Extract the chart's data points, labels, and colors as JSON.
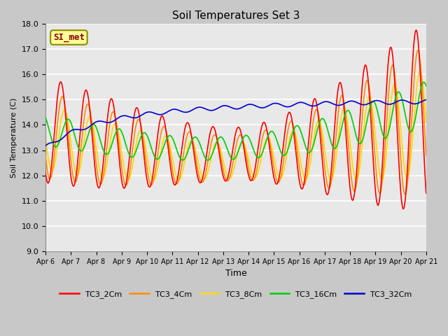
{
  "title": "Soil Temperatures Set 3",
  "xlabel": "Time",
  "ylabel": "Soil Temperature (C)",
  "ylim": [
    9.0,
    18.0
  ],
  "yticks": [
    9.0,
    10.0,
    11.0,
    12.0,
    13.0,
    14.0,
    15.0,
    16.0,
    17.0,
    18.0
  ],
  "xtick_labels": [
    "Apr 6",
    "Apr 7",
    "Apr 8",
    "Apr 9",
    "Apr 10",
    "Apr 11",
    "Apr 12",
    "Apr 13",
    "Apr 14",
    "Apr 15",
    "Apr 16",
    "Apr 17",
    "Apr 18",
    "Apr 19",
    "Apr 20",
    "Apr 21"
  ],
  "series": {
    "TC3_2Cm": {
      "color": "#FF0000",
      "lw": 1.2
    },
    "TC3_4Cm": {
      "color": "#FF8C00",
      "lw": 1.2
    },
    "TC3_8Cm": {
      "color": "#FFD700",
      "lw": 1.2
    },
    "TC3_16Cm": {
      "color": "#00CC00",
      "lw": 1.2
    },
    "TC3_32Cm": {
      "color": "#0000CC",
      "lw": 1.2
    }
  },
  "annotation": {
    "text": "SI_met",
    "fontsize": 9,
    "color": "#8B0000",
    "bg": "#FFFF99",
    "border": "#8B8B00"
  },
  "fig_bg": "#C8C8C8",
  "plot_bg": "#E8E8E8",
  "grid_color": "#FFFFFF",
  "n_days": 15
}
